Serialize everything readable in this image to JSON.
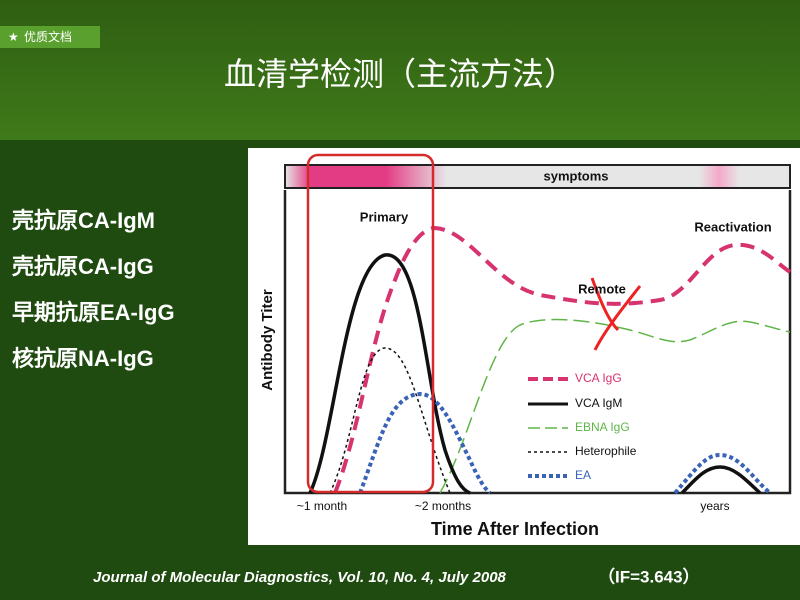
{
  "badge": "优质文档",
  "title": "血清学检测（主流方法）",
  "items": [
    "壳抗原CA-IgM",
    "壳抗原CA-IgG",
    "早期抗原EA-IgG",
    "核抗原NA-IgG"
  ],
  "figure": {
    "banner": "symptoms",
    "phases": [
      "Primary",
      "Remote",
      "Reactivation"
    ],
    "y_label": "Antibody Titer",
    "x_labels": [
      "~1 month",
      "~2 months",
      "years"
    ],
    "x_title": "Time After Infection",
    "legend": [
      "VCA IgG",
      "VCA IgM",
      "EBNA IgG",
      "Heterophile",
      "EA"
    ]
  },
  "citation": "Journal of Molecular Diagnostics, Vol. 10, No. 4, July 2008",
  "impact": "（IF=3.643）"
}
